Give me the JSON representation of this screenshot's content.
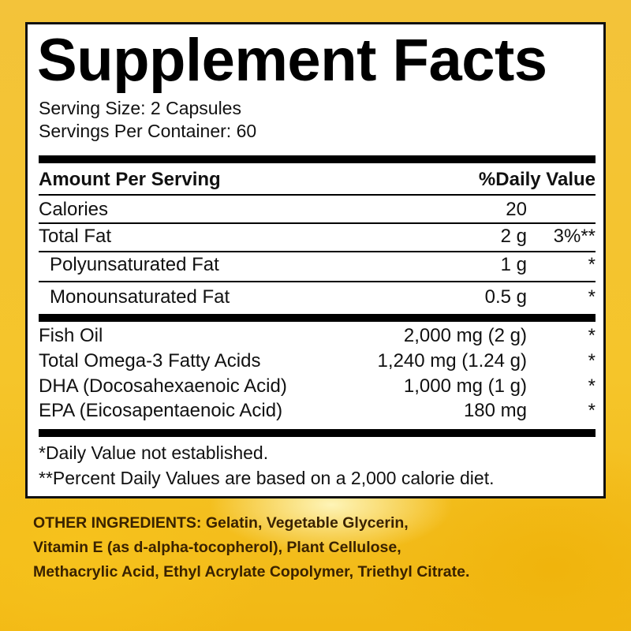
{
  "title": "Supplement Facts",
  "serving_size": "Serving Size: 2 Capsules",
  "servings_per_container": "Servings Per Container: 60",
  "header": {
    "amount": "Amount Per Serving",
    "dv": "%Daily Value"
  },
  "rows": [
    {
      "name": "Calories",
      "amount": "20",
      "dv": ""
    },
    {
      "name": "Total Fat",
      "amount": "2 g",
      "dv": "3%**"
    },
    {
      "name": "Polyunsaturated Fat",
      "amount": "1 g",
      "dv": "*"
    },
    {
      "name": "Monounsaturated Fat",
      "amount": "0.5 g",
      "dv": "*"
    },
    {
      "name": "Fish Oil",
      "amount": "2,000 mg (2 g)",
      "dv": "*"
    },
    {
      "name": "Total Omega-3 Fatty Acids",
      "amount": "1,240 mg (1.24 g)",
      "dv": "*"
    },
    {
      "name": "DHA (Docosahexaenoic Acid)",
      "amount": "1,000 mg (1 g)",
      "dv": "*"
    },
    {
      "name": "EPA (Eicosapentaenoic Acid)",
      "amount": "180 mg",
      "dv": "*"
    }
  ],
  "footnotes": [
    "*Daily Value not established.",
    "**Percent Daily Values are based on a 2,000 calorie diet."
  ],
  "other_ingredients": [
    "OTHER INGREDIENTS: Gelatin, Vegetable Glycerin,",
    "Vitamin E (as d-alpha-tocopherol), Plant Cellulose,",
    "Methacrylic Acid, Ethyl Acrylate Copolymer, Triethyl Citrate."
  ],
  "colors": {
    "background": "#f3c12a",
    "ingredients_text": "#3a2200"
  }
}
